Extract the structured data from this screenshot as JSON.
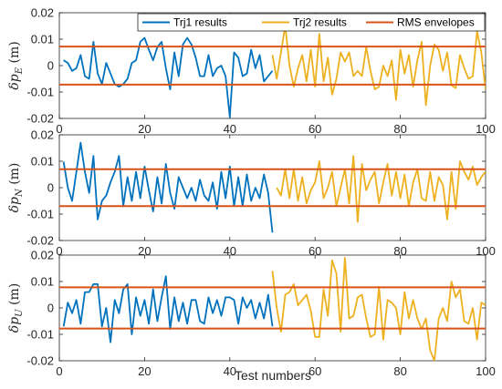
{
  "chart_data": [
    {
      "type": "line",
      "ylabel": "δp_E (m)",
      "ylabel_parts": {
        "delta": "δ",
        "p": "p",
        "sub": "E",
        "unit": "(m)"
      },
      "xlim": [
        0,
        100
      ],
      "ylim": [
        -0.02,
        0.02
      ],
      "x_ticks": [
        "0",
        "20",
        "40",
        "60",
        "80",
        "100"
      ],
      "y_ticks": [
        "-0.02",
        "-0.01",
        "0",
        "0.01",
        "0.02"
      ],
      "legend": {
        "position": "top-right",
        "entries": [
          "Trj1 results",
          "Trj2 results",
          "RMS envelopes"
        ]
      },
      "rms": 0.0072,
      "series": [
        {
          "name": "Trj1 results",
          "color": "#0072BD",
          "x_start": 1,
          "values": [
            0.002,
            0.001,
            -0.002,
            -0.001,
            0.004,
            -0.004,
            -0.005,
            0.009,
            -0.003,
            -0.007,
            0.001,
            -0.003,
            -0.007,
            -0.008,
            -0.007,
            -0.005,
            0.001,
            0.002,
            0.009,
            0.0105,
            0.006,
            0.002,
            0.007,
            0.009,
            -0.001,
            -0.009,
            0.005,
            -0.004,
            0.008,
            0.0105,
            0.008,
            0.003,
            -0.004,
            -0.004,
            0.004,
            -0.004,
            -0.001,
            0.0,
            -0.004,
            -0.0195,
            0.005,
            0.003,
            -0.004,
            -0.003,
            0.006,
            -0.001,
            0.004,
            -0.006,
            -0.004,
            -0.002
          ]
        },
        {
          "name": "Trj2 results",
          "color": "#EDB120",
          "x_start": 50,
          "values": [
            0.004,
            -0.005,
            0.005,
            0.015,
            0.0,
            -0.008,
            -0.001,
            0.004,
            -0.006,
            0.006,
            -0.008,
            0.012,
            -0.006,
            0.003,
            -0.011,
            -0.005,
            0.005,
            0.0015,
            0.005,
            -0.004,
            -0.002,
            -0.004,
            0.007,
            -0.002,
            -0.009,
            -0.008,
            0.0,
            -0.004,
            0.002,
            -0.013,
            0.006,
            -0.003,
            0.004,
            -0.008,
            0.002,
            0.009,
            -0.015,
            0.0,
            0.008,
            0.006,
            -0.002,
            0.005,
            -0.0075,
            -0.0085,
            0.004,
            -0.001,
            -0.005,
            -0.004,
            0.013,
            0.005,
            -0.009
          ]
        }
      ]
    },
    {
      "type": "line",
      "ylabel": "δp_N (m)",
      "ylabel_parts": {
        "delta": "δ",
        "p": "p",
        "sub": "N",
        "unit": "(m)"
      },
      "xlim": [
        0,
        100
      ],
      "ylim": [
        -0.02,
        0.02
      ],
      "x_ticks": [
        "0",
        "20",
        "40",
        "60",
        "80",
        "100"
      ],
      "y_ticks": [
        "-0.02",
        "-0.01",
        "0",
        "0.01",
        "0.02"
      ],
      "rms": 0.007,
      "series": [
        {
          "name": "Trj1 results",
          "color": "#0072BD",
          "x_start": 1,
          "values": [
            0.0098,
            0.0,
            -0.005,
            0.006,
            0.017,
            0.006,
            -0.002,
            0.012,
            -0.012,
            -0.005,
            -0.003,
            0.002,
            0.006,
            0.012,
            -0.007,
            0.004,
            -0.005,
            0.006,
            -0.004,
            0.008,
            -0.001,
            -0.009,
            0.004,
            -0.006,
            0.009,
            -0.002,
            -0.008,
            0.004,
            0.0,
            -0.004,
            0.0,
            -0.005,
            0.003,
            -0.003,
            -0.005,
            0.002,
            -0.008,
            0.006,
            -0.004,
            0.008,
            -0.007,
            0.004,
            -0.007,
            0.005,
            -0.005,
            0.0,
            -0.004,
            0.005,
            -0.002,
            -0.017
          ]
        },
        {
          "name": "Trj2 results",
          "color": "#EDB120",
          "x_start": 51,
          "values": [
            0.0,
            -0.003,
            0.007,
            -0.004,
            0.007,
            -0.005,
            0.004,
            -0.006,
            -0.001,
            0.002,
            0.01,
            -0.004,
            0.0,
            0.006,
            -0.007,
            0.0,
            0.007,
            -0.006,
            0.012,
            -0.013,
            0.009,
            -0.001,
            0.003,
            0.006,
            -0.006,
            0.002,
            0.009,
            -0.003,
            0.006,
            -0.004,
            0.005,
            -0.007,
            0.002,
            0.007,
            -0.004,
            -0.005,
            0.006,
            -0.005,
            0.004,
            0.001,
            -0.012,
            0.006,
            -0.008,
            0.01,
            0.006,
            0.003,
            0.008,
            0.001,
            0.004,
            0.006
          ]
        }
      ]
    },
    {
      "type": "line",
      "ylabel": "δp_U (m)",
      "ylabel_parts": {
        "delta": "δ",
        "p": "p",
        "sub": "U",
        "unit": "(m)"
      },
      "xlabel": "Test numbers",
      "xlim": [
        0,
        100
      ],
      "ylim": [
        -0.02,
        0.02
      ],
      "x_ticks": [
        "0",
        "20",
        "40",
        "60",
        "80",
        "100"
      ],
      "y_ticks": [
        "-0.02",
        "-0.01",
        "0",
        "0.01",
        "0.02"
      ],
      "rms": 0.0078,
      "series": [
        {
          "name": "Trj1 results",
          "color": "#0072BD",
          "x_start": 1,
          "values": [
            -0.007,
            0.002,
            -0.002,
            0.003,
            -0.006,
            0.006,
            0.006,
            0.009,
            0.009,
            -0.007,
            0.0,
            -0.013,
            0.003,
            -0.002,
            0.007,
            0.009,
            -0.01,
            0.004,
            -0.003,
            0.003,
            -0.006,
            0.007,
            -0.005,
            0.004,
            0.012,
            -0.008,
            0.004,
            -0.005,
            0.002,
            -0.006,
            0.003,
            0.003,
            -0.005,
            -0.006,
            0.004,
            -0.002,
            0.003,
            -0.003,
            0.004,
            0.004,
            0.003,
            -0.006,
            0.004,
            0.0,
            0.003,
            -0.004,
            0.002,
            -0.004,
            0.005,
            -0.007
          ]
        },
        {
          "name": "Trj2 results",
          "color": "#EDB120",
          "x_start": 50,
          "values": [
            0.014,
            0.0,
            -0.009,
            0.005,
            0.006,
            0.009,
            0.001,
            0.003,
            0.005,
            -0.001,
            -0.011,
            -0.011,
            0.007,
            -0.003,
            0.018,
            0.013,
            -0.009,
            0.019,
            -0.004,
            -0.003,
            0.004,
            0.005,
            -0.004,
            -0.011,
            -0.01,
            0.008,
            -0.012,
            0.003,
            0.002,
            0.0,
            -0.01,
            0.006,
            -0.004,
            0.003,
            -0.004,
            -0.008,
            -0.004,
            -0.016,
            -0.02,
            -0.004,
            0.0,
            -0.005,
            0.01,
            0.004,
            0.007,
            -0.005,
            -0.006,
            0.0,
            -0.012,
            0.002,
            0.001
          ]
        }
      ]
    }
  ]
}
